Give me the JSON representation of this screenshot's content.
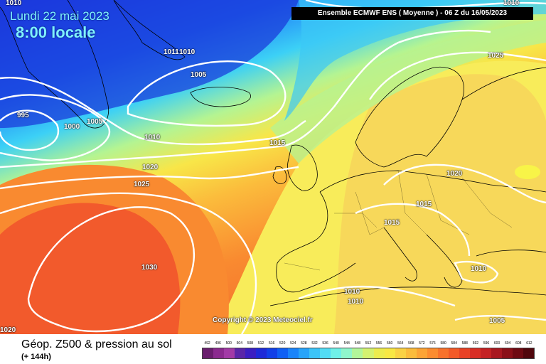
{
  "header": {
    "date_label": "Lundi 22 mai 2023",
    "time_label": "8:00 locale",
    "run_info": "Ensemble ECMWF ENS  ( Moyenne )  -  06 Z du 16/05/2023"
  },
  "copyright": "Copyright © 2023 Meteociel.fr",
  "footer": {
    "title": "Géop. Z500 & pression au sol",
    "subtitle": "(+ 144h)"
  },
  "isobar_labels": [
    "1010",
    "1011",
    "1010",
    "1010",
    "1005",
    "995",
    "1000",
    "1005",
    "1010",
    "1015",
    "1020",
    "1025",
    "1025",
    "1020",
    "1015",
    "1015",
    "1030",
    "1010",
    "1010",
    "1010",
    "1005",
    "1020"
  ],
  "color_scale": {
    "values": [
      "492",
      "496",
      "500",
      "504",
      "508",
      "512",
      "516",
      "520",
      "524",
      "528",
      "532",
      "536",
      "540",
      "544",
      "548",
      "552",
      "556",
      "560",
      "564",
      "568",
      "572",
      "576",
      "580",
      "584",
      "588",
      "592",
      "596",
      "600",
      "604",
      "608",
      "612"
    ],
    "colors": [
      "#6a1e6e",
      "#8b2a8f",
      "#a23aa6",
      "#5a26a8",
      "#3b1fc2",
      "#1e2ad8",
      "#1240e8",
      "#1060f4",
      "#1a84fa",
      "#28a4fa",
      "#3cc4f8",
      "#52dcf4",
      "#6ff0e8",
      "#8ff6cc",
      "#b2f69a",
      "#d4f270",
      "#ecec4e",
      "#f8e844",
      "#fad244",
      "#fbbc3c",
      "#fca436",
      "#fc8c30",
      "#f8722c",
      "#f25a28",
      "#e84226",
      "#d82e26",
      "#c42224",
      "#a81820",
      "#8a1018",
      "#6e0a12",
      "#50060c"
    ]
  }
}
